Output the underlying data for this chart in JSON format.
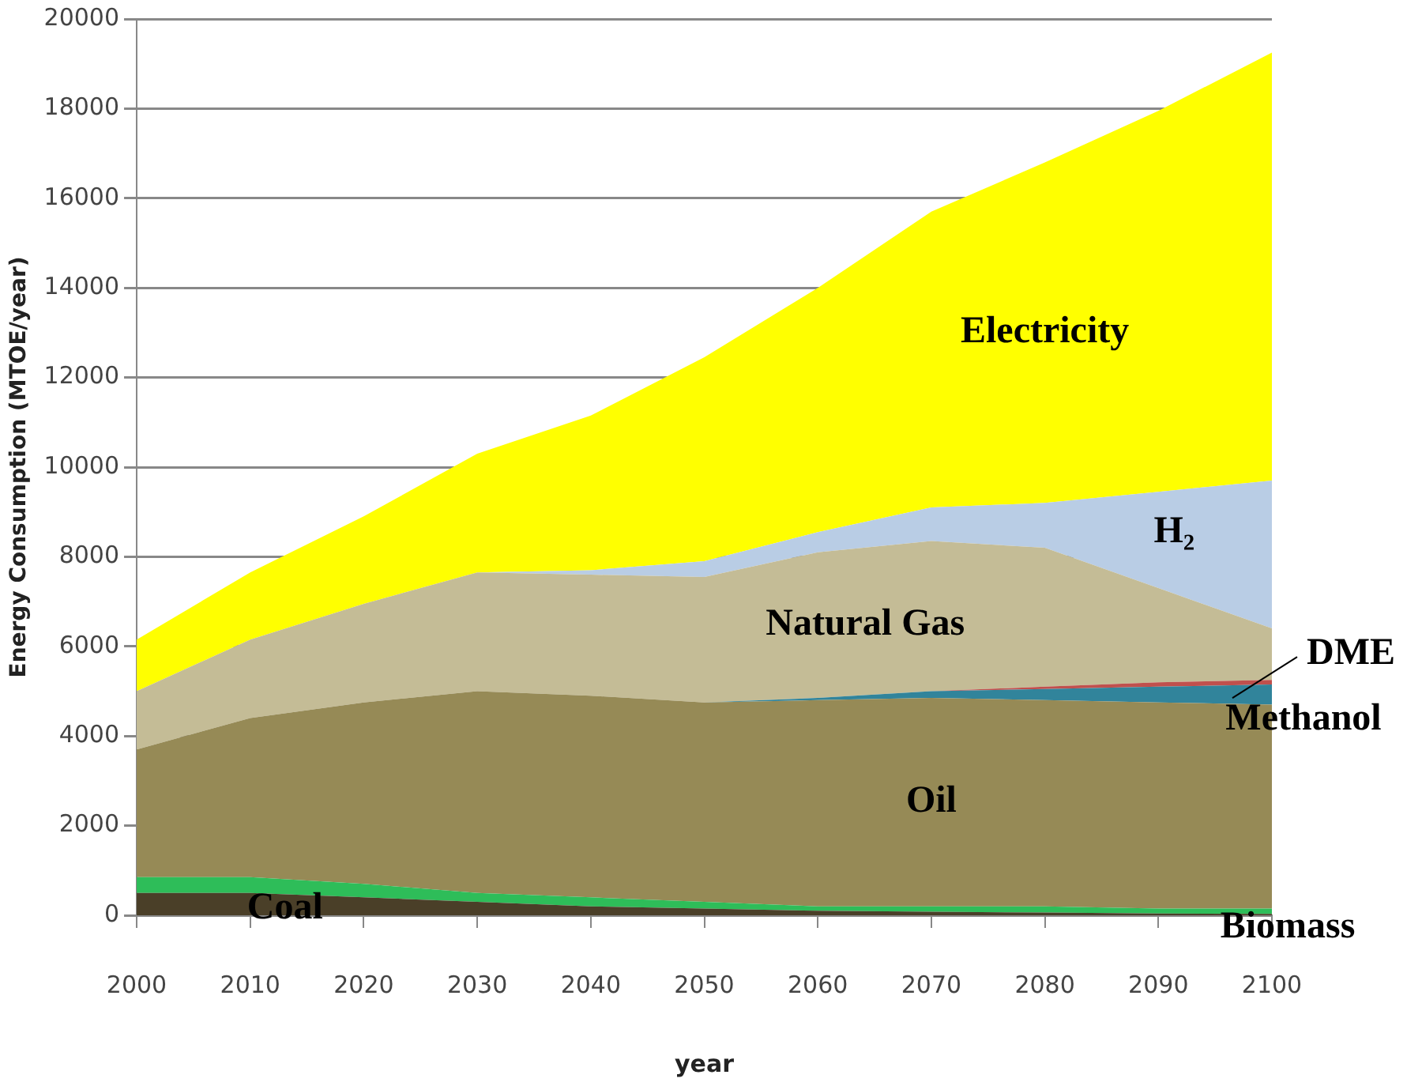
{
  "chart_data": {
    "type": "area",
    "stacked": true,
    "xlabel": "year",
    "ylabel": "Energy Consumption (MTOE/year)",
    "x": [
      2000,
      2010,
      2020,
      2030,
      2040,
      2050,
      2060,
      2070,
      2080,
      2090,
      2100
    ],
    "xlim": [
      2000,
      2100
    ],
    "xticks": [
      2000,
      2010,
      2020,
      2030,
      2040,
      2050,
      2060,
      2070,
      2080,
      2090,
      2100
    ],
    "ylim": [
      0,
      20000
    ],
    "yticks": [
      0,
      2000,
      4000,
      6000,
      8000,
      10000,
      12000,
      14000,
      16000,
      18000,
      20000
    ],
    "grid": "y",
    "legend": false,
    "series": [
      {
        "name": "Coal",
        "color": "#4a3f28",
        "values": [
          500,
          500,
          400,
          300,
          200,
          150,
          100,
          80,
          60,
          40,
          30
        ]
      },
      {
        "name": "Biomass",
        "color": "#2ebd59",
        "values": [
          350,
          350,
          300,
          200,
          200,
          150,
          100,
          120,
          140,
          110,
          120
        ]
      },
      {
        "name": "Oil",
        "color": "#968a56",
        "values": [
          2850,
          3550,
          4050,
          4500,
          4500,
          4450,
          4600,
          4650,
          4600,
          4600,
          4550
        ]
      },
      {
        "name": "Methanol",
        "color": "#31849b",
        "values": [
          0,
          0,
          0,
          0,
          0,
          0,
          50,
          150,
          250,
          350,
          450
        ]
      },
      {
        "name": "DME",
        "color": "#c0504d",
        "values": [
          0,
          0,
          0,
          0,
          0,
          0,
          0,
          0,
          50,
          100,
          100
        ]
      },
      {
        "name": "Natural Gas",
        "color": "#c4bc96",
        "values": [
          1300,
          1750,
          2200,
          2650,
          2700,
          2800,
          3250,
          3350,
          3100,
          2100,
          1150
        ]
      },
      {
        "name": "H₂",
        "color": "#b9cde5",
        "values": [
          0,
          0,
          0,
          0,
          100,
          350,
          450,
          750,
          1000,
          2150,
          3300
        ]
      },
      {
        "name": "Electricity",
        "color": "#ffff00",
        "values": [
          1150,
          1500,
          1950,
          2650,
          3450,
          4550,
          5450,
          6600,
          7600,
          8500,
          9550
        ]
      }
    ]
  }
}
